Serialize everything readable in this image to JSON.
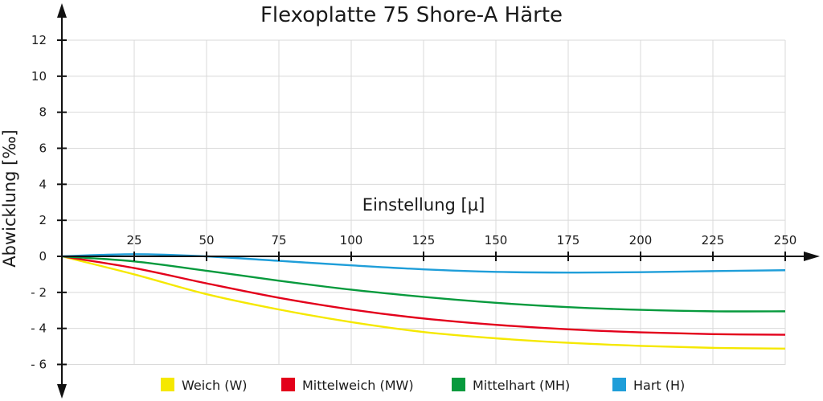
{
  "chart_data": {
    "type": "line",
    "title": "Flexoplatte 75 Shore-A Härte",
    "xlabel": "Einstellung [µ]",
    "ylabel": "Abwicklung [‰]",
    "xlim": [
      0,
      250
    ],
    "ylim": [
      -6,
      12
    ],
    "x_ticks": [
      25,
      50,
      75,
      100,
      125,
      150,
      175,
      200,
      225,
      250
    ],
    "x_tick_labels": [
      "25",
      "50",
      "75",
      "100",
      "125",
      "150",
      "175",
      "200",
      "225",
      "250"
    ],
    "y_ticks": [
      12,
      10,
      8,
      6,
      4,
      2,
      0,
      -2,
      -4,
      -6
    ],
    "y_tick_labels": [
      "12",
      "10",
      "8",
      "6",
      "4",
      "2",
      "0",
      "- 2",
      "- 4",
      "- 6"
    ],
    "grid": true,
    "legend_position": "bottom",
    "x": [
      0,
      25,
      50,
      75,
      100,
      125,
      150,
      175,
      200,
      225,
      250
    ],
    "series": [
      {
        "name": "Weich (W)",
        "color": "#f5e800",
        "values": [
          0,
          -1.0,
          -2.1,
          -2.95,
          -3.65,
          -4.2,
          -4.55,
          -4.8,
          -4.97,
          -5.08,
          -5.12
        ]
      },
      {
        "name": "Mittelweich (MW)",
        "color": "#e3001b",
        "values": [
          0,
          -0.65,
          -1.5,
          -2.3,
          -2.95,
          -3.45,
          -3.8,
          -4.05,
          -4.22,
          -4.32,
          -4.35
        ]
      },
      {
        "name": "Mittelhart (MH)",
        "color": "#079a3d",
        "values": [
          0,
          -0.28,
          -0.8,
          -1.35,
          -1.85,
          -2.25,
          -2.58,
          -2.82,
          -2.97,
          -3.05,
          -3.05
        ]
      },
      {
        "name": "Hart (H)",
        "color": "#1f9ed9",
        "values": [
          0,
          0.12,
          0.0,
          -0.25,
          -0.5,
          -0.72,
          -0.86,
          -0.9,
          -0.88,
          -0.82,
          -0.77
        ]
      }
    ]
  }
}
